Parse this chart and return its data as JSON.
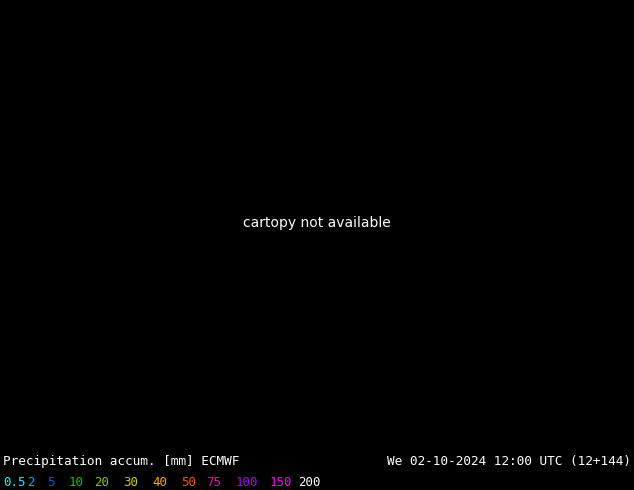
{
  "title_left": "Precipitation accum. [mm] ECMWF",
  "title_right": "We 02-10-2024 12:00 UTC (12+144)",
  "legend_labels": [
    "0.5",
    "2",
    "5",
    "10",
    "20",
    "30",
    "40",
    "50",
    "75",
    "100",
    "150",
    "200"
  ],
  "legend_colors": [
    "#00ffff",
    "#00aaff",
    "#0055ff",
    "#00cc00",
    "#88cc00",
    "#cccc00",
    "#ffaa00",
    "#ff5500",
    "#ff00bb",
    "#aa00ff",
    "#ff00ff",
    "#ffffff"
  ],
  "bg_color": "#000000",
  "text_color": "#ffffff",
  "figsize": [
    6.34,
    4.9
  ],
  "dpi": 100,
  "extent": [
    -130,
    -60,
    20,
    55
  ],
  "precip_bounds": [
    0,
    0.5,
    2,
    5,
    10,
    20,
    30,
    40,
    50,
    75,
    100,
    150,
    200,
    500
  ],
  "precip_colors": [
    "#000000",
    "#00ffff",
    "#00aaff",
    "#0055ff",
    "#00cc00",
    "#88cc00",
    "#cccc00",
    "#ffaa00",
    "#ff5500",
    "#ff00bb",
    "#aa00ff",
    "#ff00ff",
    "#ffffff"
  ],
  "land_color": "#b0c860",
  "ocean_color": "#6090c0",
  "lake_color": "#6090c0",
  "border_color": "#606060",
  "coast_color": "#606060"
}
